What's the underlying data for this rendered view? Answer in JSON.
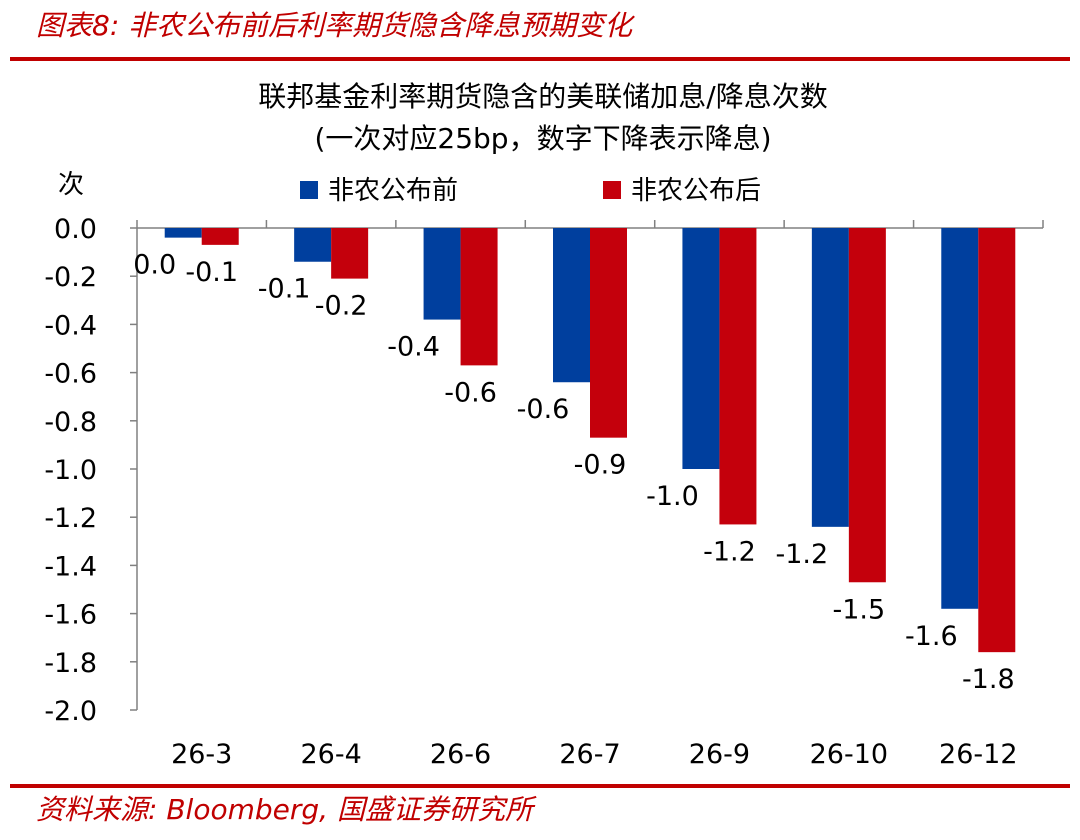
{
  "figure_title": "图表8:  非农公布前后利率期货隐含降息预期变化",
  "source_text": "资料来源:  Bloomberg,  国盛证券研究所",
  "colors": {
    "accent": "#c00000",
    "series_before": "#003f9e",
    "series_after": "#c4000c"
  },
  "chart_data": {
    "type": "bar",
    "title": "联邦基金利率期货隐含的美联储加息/降息次数",
    "subtitle": "(一次对应25bp，数字下降表示降息)",
    "ylabel": "次",
    "xlabel": "",
    "categories": [
      "26-3",
      "26-4",
      "26-6",
      "26-7",
      "26-9",
      "26-10",
      "26-12"
    ],
    "series": [
      {
        "name": "非农公布前",
        "values": [
          -0.04,
          -0.14,
          -0.38,
          -0.64,
          -1.0,
          -1.24,
          -1.58
        ],
        "labels": [
          "0.0",
          "-0.1",
          "-0.4",
          "-0.6",
          "-1.0",
          "-1.2",
          "-1.6"
        ]
      },
      {
        "name": "非农公布后",
        "values": [
          -0.07,
          -0.21,
          -0.57,
          -0.87,
          -1.23,
          -1.47,
          -1.76
        ],
        "labels": [
          "-0.1",
          "-0.2",
          "-0.6",
          "-0.9",
          "-1.2",
          "-1.5",
          "-1.8"
        ]
      }
    ],
    "ylim": [
      -2.0,
      0.0
    ],
    "yticks": [
      0.0,
      -0.2,
      -0.4,
      -0.6,
      -0.8,
      -1.0,
      -1.2,
      -1.4,
      -1.6,
      -1.8,
      -2.0
    ],
    "ytick_labels": [
      "0.0",
      "-0.2",
      "-0.4",
      "-0.6",
      "-0.8",
      "-1.0",
      "-1.2",
      "-1.4",
      "-1.6",
      "-1.8",
      "-2.0"
    ],
    "grid": false,
    "legend_position": "top-center"
  }
}
